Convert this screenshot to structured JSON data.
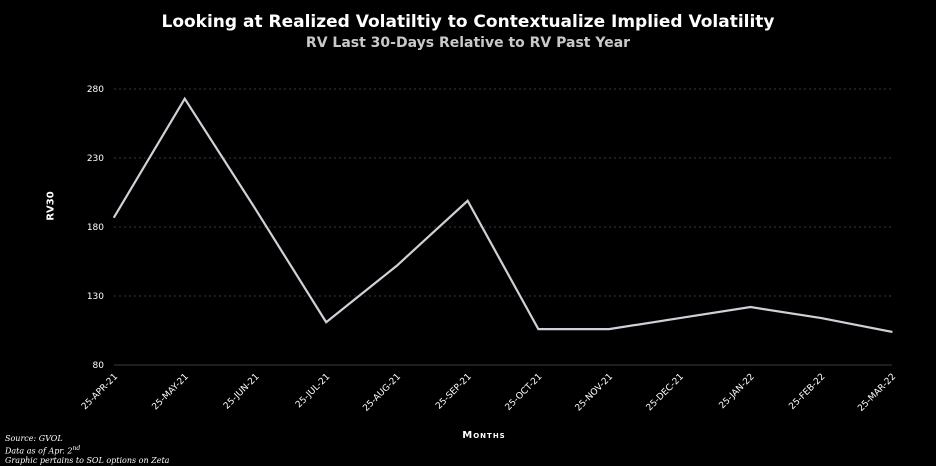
{
  "title": "Looking at Realized Volatiltiy to Contextualize Implied Volatility",
  "subtitle": "RV Last 30-Days Relative to RV Past Year",
  "footer": {
    "source": "Source: GVOL",
    "date_prefix": "Data as of Apr. 2",
    "date_suffix": "nd",
    "note": "Graphic pertains to SOL options on Zeta"
  },
  "colors": {
    "background": "#000000",
    "line": "#d0d0d8",
    "grid": "#3a3a3a"
  },
  "chart_data": {
    "type": "line",
    "title": "Looking at Realized Volatiltiy to Contextualize Implied Volatility",
    "subtitle": "RV Last 30-Days Relative to RV Past Year",
    "xlabel": "Months",
    "ylabel": "RV30",
    "ylim": [
      80,
      280
    ],
    "yticks": [
      80,
      130,
      180,
      230,
      280
    ],
    "grid": true,
    "categories": [
      "25-Apr-21",
      "25-May-21",
      "25-Jun-21",
      "25-Jul-21",
      "25-Aug-21",
      "25-Sep-21",
      "25-Oct-21",
      "25-Nov-21",
      "25-Dec-21",
      "25-Jan-22",
      "25-Feb-22",
      "25-Mar-22"
    ],
    "series": [
      {
        "values": [
          187,
          273,
          193,
          111,
          152,
          199,
          106,
          106,
          114,
          122,
          114,
          104
        ]
      }
    ]
  }
}
